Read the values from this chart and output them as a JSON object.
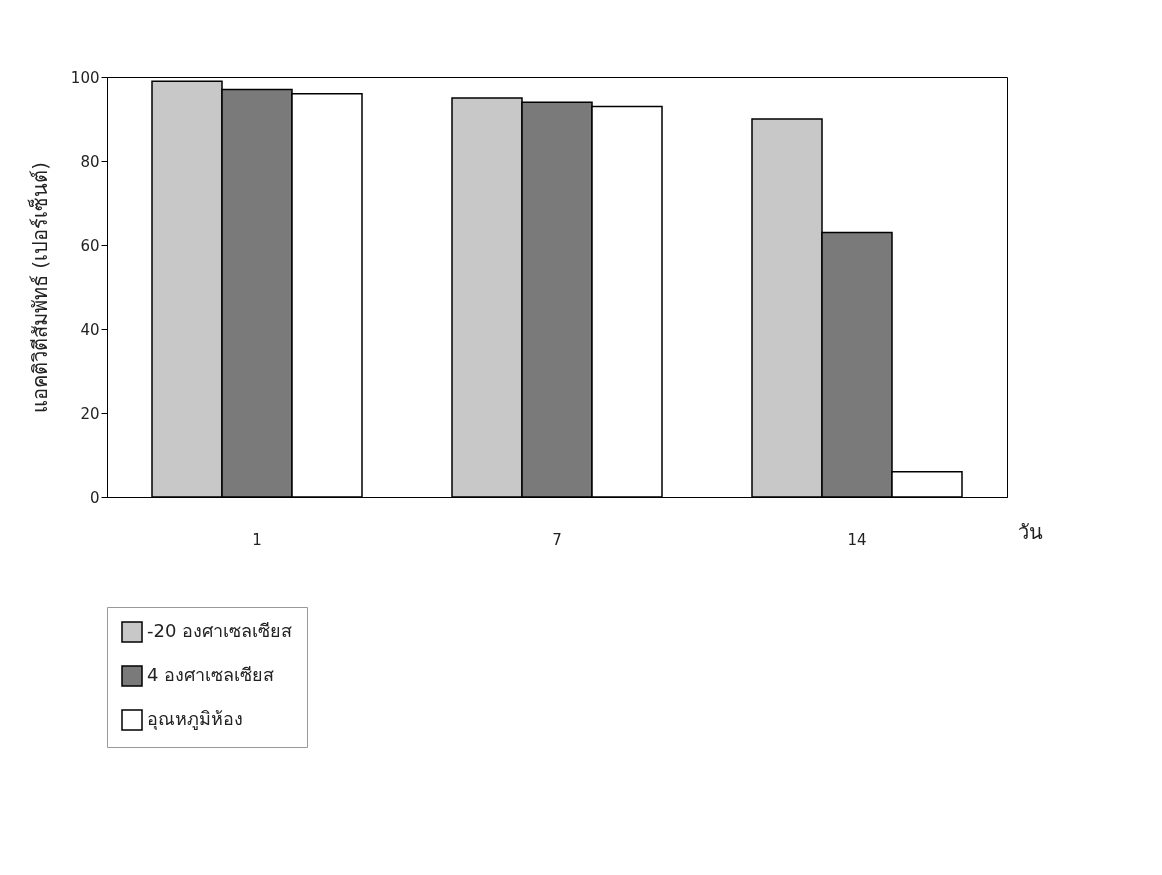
{
  "chart_data": {
    "type": "bar",
    "ylabel": "แอคติวิตีสัมพัทธ์ (เปอร์เซ็นต์)",
    "xlabel": "วัน",
    "categories": [
      "1",
      "7",
      "14"
    ],
    "series": [
      {
        "name": "-20 องศาเซลเซียส",
        "color": "#c8c8c8",
        "values": [
          99,
          95,
          90
        ]
      },
      {
        "name": "4 องศาเซลเซียส",
        "color": "#7a7a7a",
        "values": [
          97,
          94,
          63
        ]
      },
      {
        "name": "อุณหภูมิห้อง",
        "color": "#ffffff",
        "values": [
          96,
          93,
          6
        ]
      }
    ],
    "ylim": [
      0,
      100
    ],
    "yticks": [
      0,
      20,
      40,
      60,
      80,
      100
    ],
    "grid": false,
    "legend": "bottom"
  }
}
